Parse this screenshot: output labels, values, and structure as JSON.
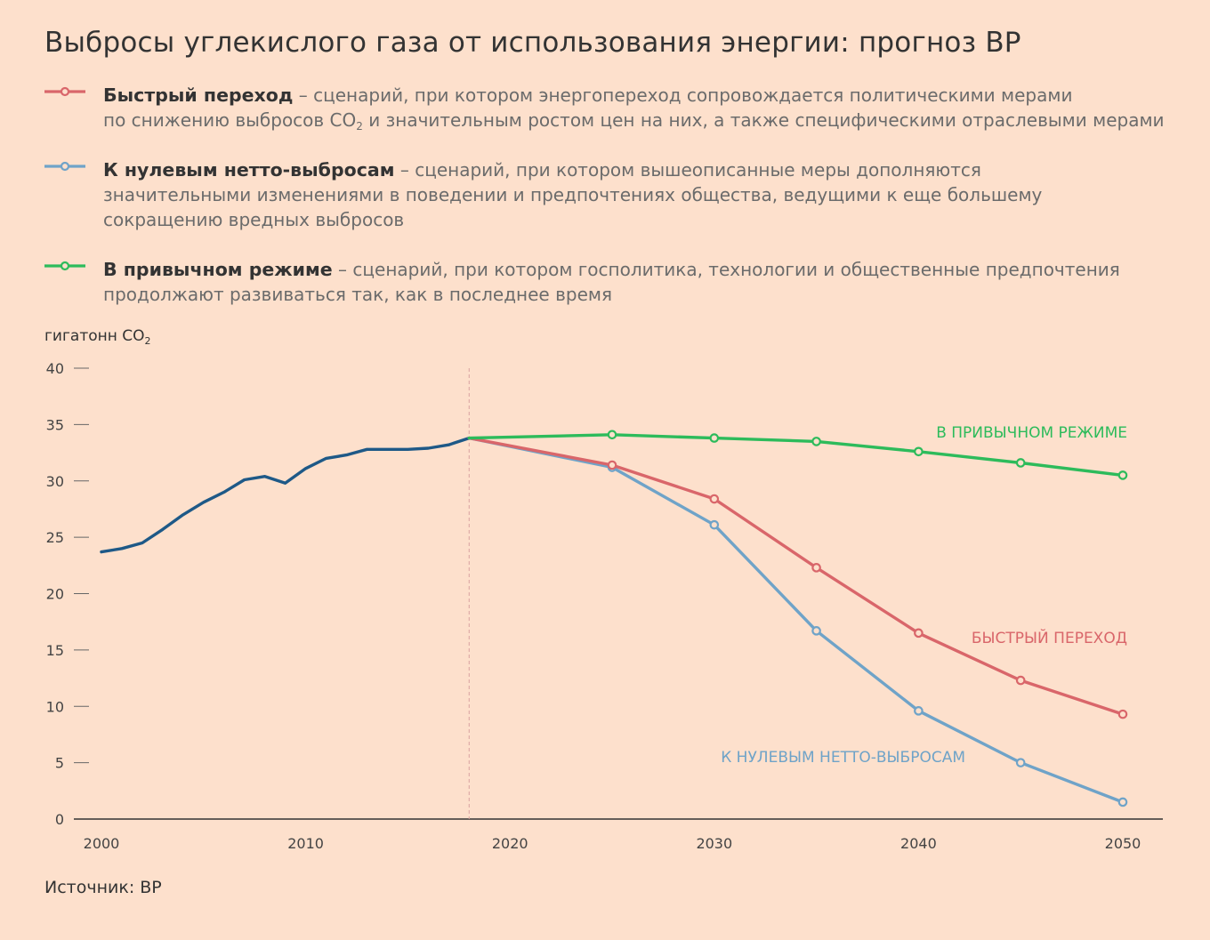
{
  "title": "Выбросы углекислого газа от использования энергии: прогноз BP",
  "legend": [
    {
      "name": "Быстрый переход",
      "color": "#d9666a",
      "line1_rest": " – сценарий, при котором энергопереход сопровождается политическими мерами",
      "line2_a": "по снижению выбросов CO",
      "line2_sub": "2",
      "line2_b": " и значительным ростом цен на них, а также специфическими отраслевыми мерами"
    },
    {
      "name": "К нулевым нетто-выбросам",
      "color": "#6fa3c8",
      "line1_rest": " – сценарий, при котором вышеописанные меры дополняются",
      "line2": "значительными изменениями в поведении и предпочтениях общества, ведущими к еще большему",
      "line3": "сокращению вредных выбросов"
    },
    {
      "name": "В привычном режиме",
      "color": "#2dbb5b",
      "line1_rest": " – сценарий, при котором госполитика, технологии и общественные предпочтения",
      "line2": "продолжают развиваться так, как в последнее время"
    }
  ],
  "ylabel": {
    "text": "гигатонн CO",
    "sub": "2"
  },
  "source": "Источник: BP",
  "colors": {
    "historical": "#1e5987",
    "axis": "#333333",
    "tick": "#666666",
    "divider": "#d9a3a0"
  },
  "chart_data": {
    "type": "line",
    "ylim": [
      0,
      40
    ],
    "xlim": [
      2000,
      2050
    ],
    "y_ticks": [
      0,
      5,
      10,
      15,
      20,
      25,
      30,
      35,
      40
    ],
    "x_ticks": [
      2000,
      2010,
      2020,
      2030,
      2040,
      2050
    ],
    "divider_x": 2018,
    "series": [
      {
        "key": "historical",
        "markers": false,
        "points": [
          [
            2000,
            23.7
          ],
          [
            2001,
            24.0
          ],
          [
            2002,
            24.5
          ],
          [
            2003,
            25.7
          ],
          [
            2004,
            27.0
          ],
          [
            2005,
            28.1
          ],
          [
            2006,
            29.0
          ],
          [
            2007,
            30.1
          ],
          [
            2008,
            30.4
          ],
          [
            2009,
            29.8
          ],
          [
            2010,
            31.1
          ],
          [
            2011,
            32.0
          ],
          [
            2012,
            32.3
          ],
          [
            2013,
            32.8
          ],
          [
            2014,
            32.8
          ],
          [
            2015,
            32.8
          ],
          [
            2016,
            32.9
          ],
          [
            2017,
            33.2
          ],
          [
            2018,
            33.8
          ]
        ]
      },
      {
        "key": "bau",
        "name": "В ПРИВЫЧНОМ РЕЖИМЕ",
        "markers": true,
        "points": [
          [
            2018,
            33.8
          ],
          [
            2025,
            34.1
          ],
          [
            2030,
            33.8
          ],
          [
            2035,
            33.5
          ],
          [
            2040,
            32.6
          ],
          [
            2045,
            31.6
          ],
          [
            2050,
            30.5
          ]
        ]
      },
      {
        "key": "rapid",
        "name": "БЫСТРЫЙ ПЕРЕХОД",
        "markers": true,
        "points": [
          [
            2018,
            33.8
          ],
          [
            2025,
            31.4
          ],
          [
            2030,
            28.4
          ],
          [
            2035,
            22.3
          ],
          [
            2040,
            16.5
          ],
          [
            2045,
            12.3
          ],
          [
            2050,
            9.3
          ]
        ]
      },
      {
        "key": "netzero",
        "name": "К НУЛЕВЫМ НЕТТО-ВЫБРОСАМ",
        "markers": true,
        "points": [
          [
            2018,
            33.8
          ],
          [
            2025,
            31.2
          ],
          [
            2030,
            26.1
          ],
          [
            2035,
            16.7
          ],
          [
            2040,
            9.6
          ],
          [
            2045,
            5.0
          ],
          [
            2050,
            1.5
          ]
        ]
      }
    ]
  }
}
